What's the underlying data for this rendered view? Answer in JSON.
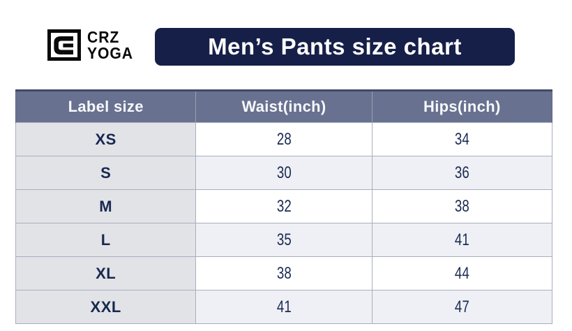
{
  "logo": {
    "icon": "c-monogram",
    "line1": "CRZ",
    "line2": "YOGA"
  },
  "title": "Men’s Pants size chart",
  "chart_data": {
    "type": "table",
    "title": "Men’s Pants size chart",
    "columns": [
      "Label size",
      "Waist(inch)",
      "Hips(inch)"
    ],
    "rows": [
      [
        "XS",
        "28",
        "34"
      ],
      [
        "S",
        "30",
        "36"
      ],
      [
        "M",
        "32",
        "38"
      ],
      [
        "L",
        "35",
        "41"
      ],
      [
        "XL",
        "38",
        "44"
      ],
      [
        "XXL",
        "41",
        "47"
      ]
    ]
  },
  "colors": {
    "banner_bg": "#161f48",
    "banner_text": "#ffffff",
    "header_bg": "#687190",
    "header_text": "#f7f8fa",
    "label_column_bg": "#e2e3e7",
    "row_alt_bg": "#eef0f5",
    "row_bg": "#ffffff",
    "cell_border": "#a9aebd",
    "body_text": "#1b2a52",
    "logo_text": "#0a0a0a"
  }
}
